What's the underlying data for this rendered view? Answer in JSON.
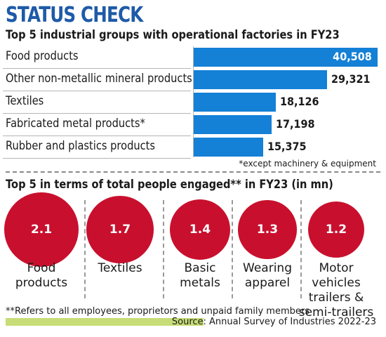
{
  "header": {
    "title": "STATUS CHECK"
  },
  "chart_data": [
    {
      "type": "bar",
      "title": "Top 5 industrial groups with operational factories in FY23",
      "categories": [
        "Food products",
        "Other non-metallic  mineral products",
        "Textiles",
        "Fabricated metal products*",
        "Rubber and plastics products"
      ],
      "values": [
        40508,
        29321,
        18126,
        17198,
        15375
      ],
      "value_labels": [
        "40,508",
        "29,321",
        "18,126",
        "17,198",
        "15,375"
      ],
      "bar_color": "#1480d6",
      "orientation": "horizontal",
      "note": "*except machinery & equipment"
    },
    {
      "type": "bubble",
      "title": "Top 5 in terms of total people engaged** in FY23 (in mn)",
      "categories": [
        "Food\nproducts",
        "Textiles",
        "Basic\nmetals",
        "Wearing\napparel",
        "Motor vehicles\ntrailers &\nsemi-trailers"
      ],
      "values": [
        2.1,
        1.7,
        1.4,
        1.3,
        1.2
      ],
      "value_labels": [
        "2.1",
        "1.7",
        "1.4",
        "1.3",
        "1.2"
      ],
      "circle_color": "#c8102e"
    }
  ],
  "footer": {
    "note": "**Refers to all employees, proprietors and unpaid family members",
    "source": "Source: Annual Survey of Industries 2022-23",
    "accent_color": "#c7dd77"
  }
}
